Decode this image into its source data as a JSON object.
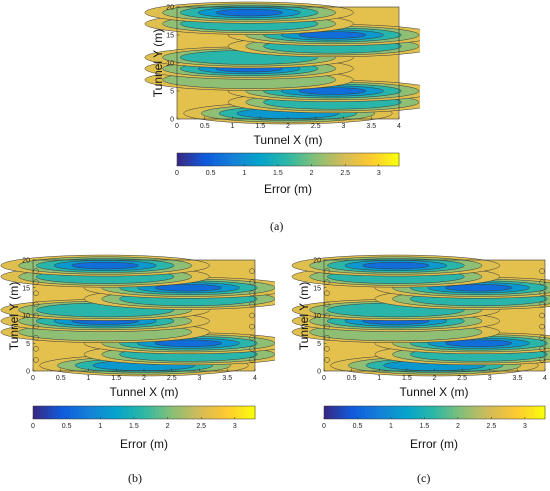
{
  "chart_data": [
    {
      "type": "heatmap",
      "panel": "a",
      "xlabel": "Tunnel X (m)",
      "ylabel": "Tunnel Y (m)",
      "xlim": [
        0,
        4
      ],
      "ylim": [
        0,
        20
      ],
      "xticks": [
        "0",
        "0.5",
        "1",
        "1.5",
        "2",
        "2.5",
        "3",
        "3.5",
        "4"
      ],
      "yticks": [
        "0",
        "5",
        "10",
        "15",
        "20"
      ],
      "colorbar": {
        "label": "Error (m)",
        "range": [
          0,
          3.3
        ],
        "ticks": [
          "0",
          "0.5",
          "1",
          "1.5",
          "2",
          "2.5",
          "3"
        ]
      },
      "colormap": "parula",
      "contours": true
    },
    {
      "type": "heatmap",
      "panel": "b",
      "xlabel": "Tunnel X (m)",
      "ylabel": "Tunnel Y (m)",
      "xlim": [
        0,
        4
      ],
      "ylim": [
        0,
        20
      ],
      "xticks": [
        "0",
        "0.5",
        "1",
        "1.5",
        "2",
        "2.5",
        "3",
        "3.5",
        "4"
      ],
      "yticks": [
        "0",
        "5",
        "10",
        "15",
        "20"
      ],
      "colorbar": {
        "label": "Error (m)",
        "range": [
          0,
          3.3
        ],
        "ticks": [
          "0",
          "0.5",
          "1",
          "1.5",
          "2",
          "2.5",
          "3"
        ]
      },
      "colormap": "parula",
      "contours": true
    },
    {
      "type": "heatmap",
      "panel": "c",
      "xlabel": "Tunnel X (m)",
      "ylabel": "Tunnel Y (m)",
      "xlim": [
        0,
        4
      ],
      "ylim": [
        0,
        20
      ],
      "xticks": [
        "0",
        "0.5",
        "1",
        "1.5",
        "2",
        "2.5",
        "3",
        "3.5",
        "4"
      ],
      "yticks": [
        "0",
        "5",
        "10",
        "15",
        "20"
      ],
      "colorbar": {
        "label": "Error (m)",
        "range": [
          0,
          3.3
        ],
        "ticks": [
          "0",
          "0.5",
          "1",
          "1.5",
          "2",
          "2.5",
          "3"
        ]
      },
      "colormap": "parula",
      "contours": true
    }
  ],
  "captions": {
    "a": "(a)",
    "b": "(b)",
    "c": "(c)"
  },
  "colors": [
    "#352a87",
    "#0f5cdd",
    "#1481d6",
    "#06a4ca",
    "#2eb7a4",
    "#87bf77",
    "#d1bb59",
    "#fec832",
    "#f9fb0e"
  ]
}
